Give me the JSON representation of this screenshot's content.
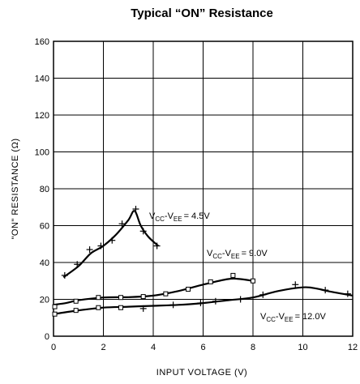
{
  "chart_data": {
    "type": "line",
    "title": "Typical “ON” Resistance",
    "xlabel": "INPUT VOLTAGE (V)",
    "ylabel": "\"ON\" RESISTANCE (Ω)",
    "xlim": [
      0,
      12
    ],
    "ylim": [
      0,
      160
    ],
    "xticks": [
      0,
      2,
      4,
      6,
      8,
      10,
      12
    ],
    "yticks": [
      0,
      20,
      40,
      60,
      80,
      100,
      120,
      140,
      160
    ],
    "grid": true,
    "annotations": [
      {
        "base": "V",
        "sub1": "CC",
        "mid": "-V",
        "sub2": "EE",
        "tail": "= 4.5V"
      },
      {
        "base": "V",
        "sub1": "CC",
        "mid": "-V",
        "sub2": "EE",
        "tail": "= 9.0V"
      },
      {
        "base": "V",
        "sub1": "CC",
        "mid": "-V",
        "sub2": "EE",
        "tail": "= 12.0V"
      }
    ],
    "series": [
      {
        "curve": [
          [
            0.4,
            32
          ],
          [
            1.0,
            38
          ],
          [
            1.5,
            45
          ],
          [
            2.0,
            49
          ],
          [
            2.5,
            55
          ],
          [
            3.0,
            63
          ],
          [
            3.25,
            68
          ],
          [
            3.5,
            60
          ],
          [
            3.8,
            54
          ],
          [
            4.2,
            49
          ]
        ],
        "points": [
          {
            "x": 0.45,
            "y": 33,
            "marker": "plus"
          },
          {
            "x": 0.95,
            "y": 39,
            "marker": "plus"
          },
          {
            "x": 1.45,
            "y": 47,
            "marker": "plus"
          },
          {
            "x": 1.9,
            "y": 49,
            "marker": "plus"
          },
          {
            "x": 2.35,
            "y": 52,
            "marker": "plus"
          },
          {
            "x": 2.75,
            "y": 61,
            "marker": "plus"
          },
          {
            "x": 3.3,
            "y": 69,
            "marker": "plus"
          },
          {
            "x": 3.6,
            "y": 57,
            "marker": "plus"
          },
          {
            "x": 4.15,
            "y": 49,
            "marker": "plus"
          }
        ]
      },
      {
        "curve": [
          [
            0,
            17
          ],
          [
            0.5,
            18
          ],
          [
            1,
            19.5
          ],
          [
            2,
            21
          ],
          [
            3,
            21.2
          ],
          [
            4,
            22
          ],
          [
            5,
            24.5
          ],
          [
            6,
            28
          ],
          [
            7,
            31
          ],
          [
            7.5,
            31
          ],
          [
            8,
            30
          ]
        ],
        "points": [
          {
            "x": 0.05,
            "y": 16,
            "marker": "square"
          },
          {
            "x": 0.9,
            "y": 19,
            "marker": "square"
          },
          {
            "x": 1.8,
            "y": 21,
            "marker": "square"
          },
          {
            "x": 2.7,
            "y": 21,
            "marker": "square"
          },
          {
            "x": 3.6,
            "y": 21.5,
            "marker": "square"
          },
          {
            "x": 4.5,
            "y": 23,
            "marker": "square"
          },
          {
            "x": 5.4,
            "y": 25.5,
            "marker": "square"
          },
          {
            "x": 6.3,
            "y": 29.5,
            "marker": "square"
          },
          {
            "x": 7.2,
            "y": 33,
            "marker": "square"
          },
          {
            "x": 8.0,
            "y": 30,
            "marker": "square"
          }
        ]
      },
      {
        "curve": [
          [
            0,
            12
          ],
          [
            1,
            14
          ],
          [
            2,
            15.5
          ],
          [
            3,
            16
          ],
          [
            4,
            16.5
          ],
          [
            5,
            17
          ],
          [
            6,
            18
          ],
          [
            7,
            19.5
          ],
          [
            8,
            21
          ],
          [
            9,
            24.5
          ],
          [
            10,
            26.5
          ],
          [
            10.5,
            26
          ],
          [
            11,
            24.5
          ],
          [
            12,
            22
          ]
        ],
        "points": [
          {
            "x": 0.05,
            "y": 12,
            "marker": "square"
          },
          {
            "x": 0.9,
            "y": 14,
            "marker": "square"
          },
          {
            "x": 1.8,
            "y": 15.5,
            "marker": "square"
          },
          {
            "x": 2.7,
            "y": 15.5,
            "marker": "square"
          },
          {
            "x": 3.6,
            "y": 15,
            "marker": "plus"
          },
          {
            "x": 4.8,
            "y": 17,
            "marker": "plus"
          },
          {
            "x": 5.9,
            "y": 18,
            "marker": "plus"
          },
          {
            "x": 6.5,
            "y": 19,
            "marker": "plus"
          },
          {
            "x": 7.5,
            "y": 20,
            "marker": "plus"
          },
          {
            "x": 8.4,
            "y": 22.5,
            "marker": "plus"
          },
          {
            "x": 9.7,
            "y": 28,
            "marker": "plus"
          },
          {
            "x": 10.9,
            "y": 25,
            "marker": "plus"
          },
          {
            "x": 11.8,
            "y": 23,
            "marker": "plus"
          }
        ]
      }
    ]
  }
}
